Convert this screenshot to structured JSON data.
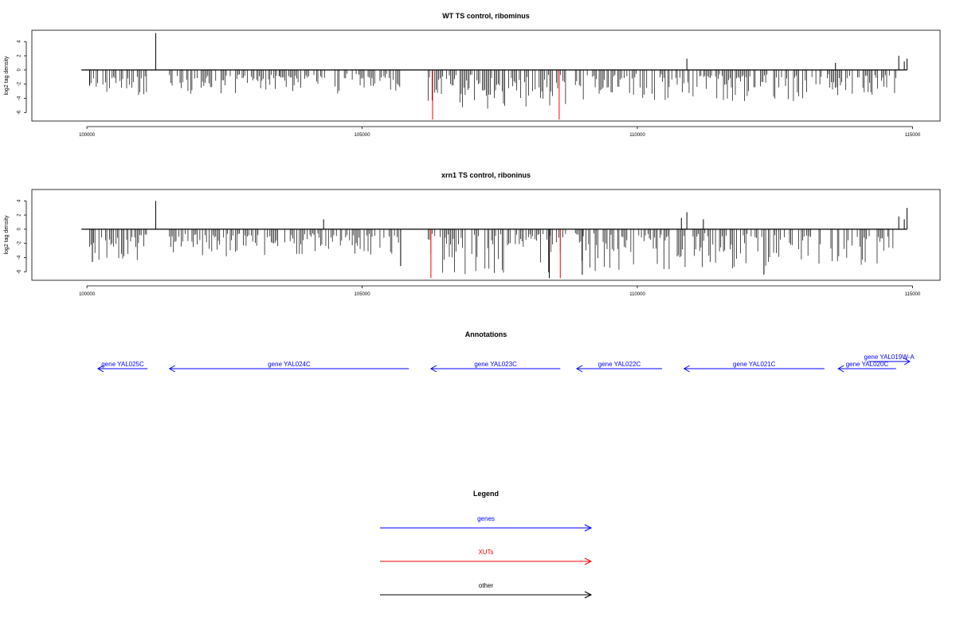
{
  "chart_data": [
    {
      "type": "bar",
      "title": "WT TS control, ribominus",
      "xlabel": "",
      "ylabel": "log2 tag density",
      "xlim": [
        99000,
        115500
      ],
      "ylim": [
        -7.2,
        5.6
      ],
      "x_ticks": [
        100000,
        105000,
        110000,
        115000
      ],
      "y_ticks": [
        -6,
        -4,
        -2,
        0,
        2,
        4
      ],
      "grid": false,
      "series": [
        {
          "color": "#000000",
          "x": [
            100050,
            101250,
            110900,
            113600,
            114750,
            114850,
            114900
          ],
          "values": [
            -2.2,
            5.2,
            1.6,
            1.0,
            2.0,
            1.2,
            1.6
          ]
        },
        {
          "color": "#ff0000",
          "x": [
            106280,
            108580
          ],
          "values": [
            -7.0,
            -7.0
          ]
        }
      ],
      "regions": [
        {
          "x": [
            100050,
            101100
          ],
          "depth": 2.8
        },
        {
          "x": [
            101500,
            103500
          ],
          "depth": 2.4
        },
        {
          "x": [
            103500,
            105700
          ],
          "depth": 2.6
        },
        {
          "x": [
            106200,
            108700
          ],
          "depth": 4.6
        },
        {
          "x": [
            108850,
            110650
          ],
          "depth": 3.6
        },
        {
          "x": [
            110700,
            113350
          ],
          "depth": 3.8
        },
        {
          "x": [
            113450,
            114700
          ],
          "depth": 3.2
        }
      ]
    },
    {
      "type": "bar",
      "title": "xrn1 TS control, riboninus",
      "xlabel": "",
      "ylabel": "log2 tag density",
      "xlim": [
        99000,
        115500
      ],
      "ylim": [
        -7.2,
        5.6
      ],
      "x_ticks": [
        100000,
        105000,
        110000,
        115000
      ],
      "y_ticks": [
        -6,
        -4,
        -2,
        0,
        2,
        4
      ],
      "grid": false,
      "series": [
        {
          "color": "#000000",
          "x": [
            100100,
            101250,
            104300,
            105700,
            108400,
            109000,
            110800,
            110900,
            111200,
            112300,
            114750,
            114850,
            114900
          ],
          "values": [
            -4.6,
            4.0,
            1.4,
            -5.2,
            -6.9,
            -6.4,
            1.6,
            2.4,
            1.4,
            -6.4,
            1.8,
            1.4,
            3.0
          ]
        },
        {
          "color": "#ff0000",
          "x": [
            106250,
            108600
          ],
          "values": [
            -6.9,
            -6.9
          ]
        }
      ],
      "regions": [
        {
          "x": [
            100050,
            101100
          ],
          "depth": 3.6
        },
        {
          "x": [
            101500,
            103500
          ],
          "depth": 2.8
        },
        {
          "x": [
            103500,
            105700
          ],
          "depth": 3.0
        },
        {
          "x": [
            106200,
            108700
          ],
          "depth": 5.6
        },
        {
          "x": [
            108850,
            110600
          ],
          "depth": 5.2
        },
        {
          "x": [
            110700,
            113200
          ],
          "depth": 4.6
        },
        {
          "x": [
            113300,
            114650
          ],
          "depth": 4.4
        }
      ]
    },
    {
      "type": "annotation",
      "title": "Annotations",
      "xlim": [
        99000,
        115500
      ],
      "genes": [
        {
          "label": "gene YAL025C",
          "start": 100200,
          "end": 101100,
          "strand": "-",
          "color": "#0000ff"
        },
        {
          "label": "gene YAL024C",
          "start": 101500,
          "end": 105850,
          "strand": "-",
          "color": "#0000ff"
        },
        {
          "label": "gene YAL023C",
          "start": 106250,
          "end": 108600,
          "strand": "-",
          "color": "#0000ff"
        },
        {
          "label": "gene YAL022C",
          "start": 108900,
          "end": 110450,
          "strand": "-",
          "color": "#0000ff"
        },
        {
          "label": "gene YAL021C",
          "start": 110850,
          "end": 113400,
          "strand": "-",
          "color": "#0000ff"
        },
        {
          "label": "gene YAL020C",
          "start": 113650,
          "end": 114700,
          "strand": "-",
          "color": "#0000ff"
        },
        {
          "label": "gene YAL019W-A",
          "start": 114200,
          "end": 114950,
          "strand": "+",
          "color": "#0000ff"
        }
      ]
    }
  ],
  "annotations_title": "Annotations",
  "legend": {
    "title": "Legend",
    "items": [
      {
        "label": "genes",
        "color": "#0000ff"
      },
      {
        "label": "XUTs",
        "color": "#ff0000"
      },
      {
        "label": "other",
        "color": "#000000"
      }
    ]
  }
}
